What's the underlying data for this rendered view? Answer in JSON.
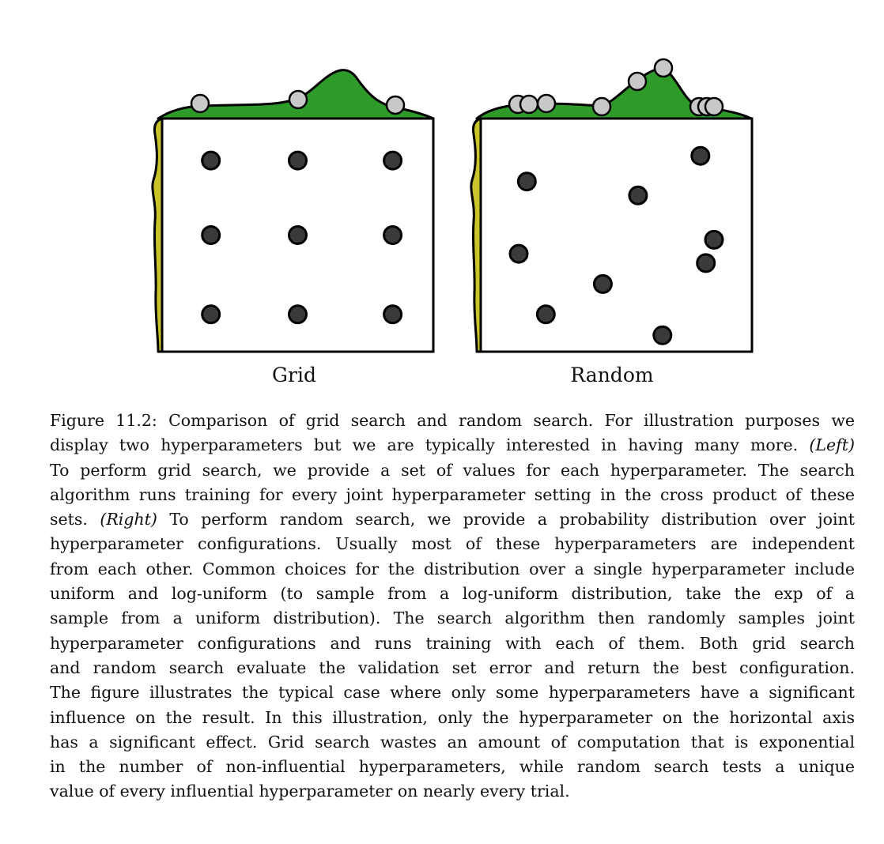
{
  "figure": {
    "panels": [
      {
        "id": "grid",
        "label": "Grid"
      },
      {
        "id": "random",
        "label": "Random"
      }
    ],
    "colors": {
      "important_function": "#2e9a2a",
      "unimportant_function": "#c9c42a",
      "trial_point": "#3a3a3a",
      "projection_marker": "#c8c8c8",
      "outline": "#000000",
      "panel_background": "#ffffff"
    },
    "grid_trials": [
      [
        0.18,
        0.82
      ],
      [
        0.5,
        0.82
      ],
      [
        0.85,
        0.82
      ],
      [
        0.18,
        0.5
      ],
      [
        0.5,
        0.5
      ],
      [
        0.85,
        0.5
      ],
      [
        0.18,
        0.16
      ],
      [
        0.5,
        0.16
      ],
      [
        0.85,
        0.16
      ]
    ],
    "random_trials": [
      [
        0.81,
        0.84
      ],
      [
        0.17,
        0.73
      ],
      [
        0.58,
        0.67
      ],
      [
        0.86,
        0.48
      ],
      [
        0.14,
        0.42
      ],
      [
        0.83,
        0.38
      ],
      [
        0.45,
        0.29
      ],
      [
        0.24,
        0.16
      ],
      [
        0.67,
        0.07
      ]
    ]
  },
  "caption": {
    "lines": [
      [
        {
          "t": "Figure 11.2: Comparison of grid search and random search. For illustration purposes we"
        }
      ],
      [
        {
          "t": "display two hyperparameters but we are typically interested in having many more. "
        },
        {
          "t": "(Left)",
          "i": true
        }
      ],
      [
        {
          "t": "To perform grid search, we provide a set of values for each hyperparameter. The search"
        }
      ],
      [
        {
          "t": "algorithm runs training for every joint hyperparameter setting in the cross product of these"
        }
      ],
      [
        {
          "t": "sets. "
        },
        {
          "t": "(Right)",
          "i": true
        },
        {
          "t": " To perform random search, we provide a probability distribution over joint"
        }
      ],
      [
        {
          "t": "hyperparameter configurations. Usually most of these hyperparameters are independent"
        }
      ],
      [
        {
          "t": "from each other. Common choices for the distribution over a single hyperparameter include"
        }
      ],
      [
        {
          "t": "uniform and log-uniform (to sample from a log-uniform distribution, take the exp of a"
        }
      ],
      [
        {
          "t": "sample from a uniform distribution). The search algorithm then randomly samples joint"
        }
      ],
      [
        {
          "t": "hyperparameter configurations and runs training with each of them. Both grid search"
        }
      ],
      [
        {
          "t": "and random search evaluate the validation set error and return the best configuration."
        }
      ],
      [
        {
          "t": "The figure illustrates the typical case where only some hyperparameters have a significant"
        }
      ],
      [
        {
          "t": "influence on the result. In this illustration, only the hyperparameter on the horizontal axis"
        }
      ],
      [
        {
          "t": "has a significant effect. Grid search wastes an amount of computation that is exponential"
        }
      ],
      [
        {
          "t": "in the number of non-influential hyperparameters, while random search tests a unique"
        }
      ],
      [
        {
          "t": "value of every influential hyperparameter on nearly every trial."
        }
      ]
    ]
  }
}
